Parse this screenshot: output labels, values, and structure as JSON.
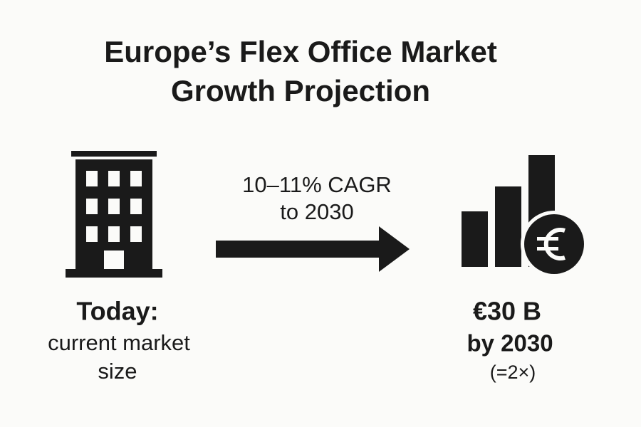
{
  "header": {
    "title_lines": [
      "Europe’s Flex Office Market",
      "Growth Projection"
    ]
  },
  "left": {
    "heading": "Today:",
    "lines": [
      "current market",
      "size"
    ]
  },
  "arrow": {
    "lines": [
      "10–11% CAGR",
      "to 2030"
    ]
  },
  "right": {
    "heading": "€30 B",
    "lines": [
      "by 2030",
      "(=2×)"
    ]
  }
}
